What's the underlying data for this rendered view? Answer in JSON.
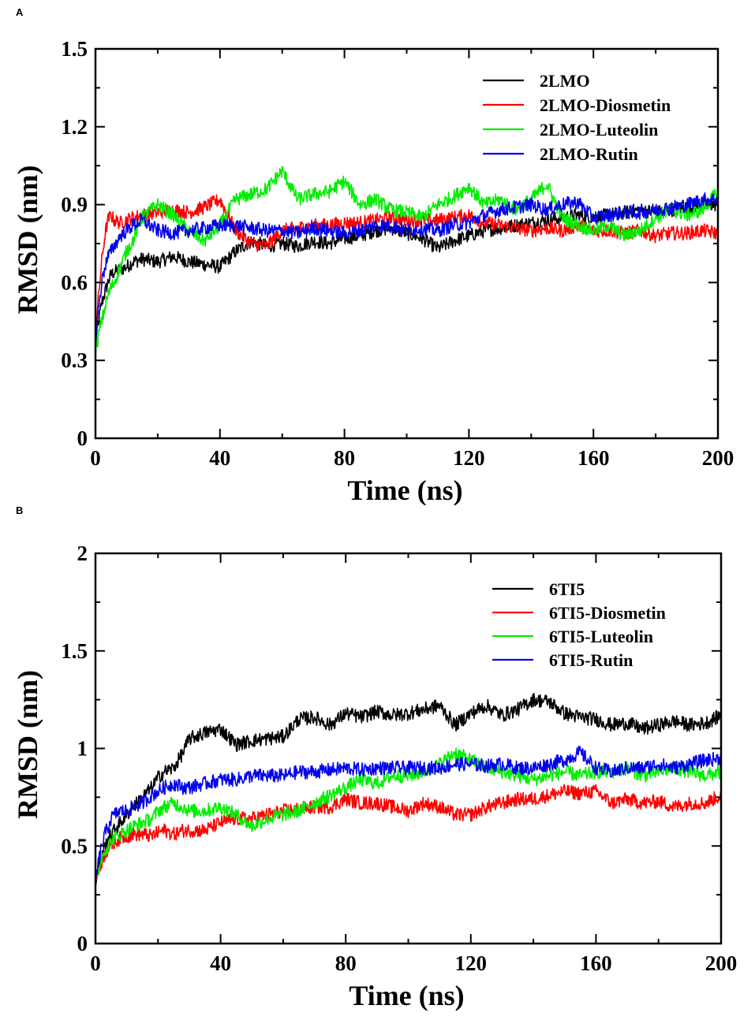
{
  "chart_data": [
    {
      "panel": "A",
      "type": "line",
      "xlabel": "Time (ns)",
      "ylabel": "RMSD (nm)",
      "xlim": [
        0,
        200
      ],
      "ylim": [
        0,
        1.5
      ],
      "xticks": [
        0,
        40,
        80,
        120,
        160,
        200
      ],
      "yticks": [
        0,
        0.3,
        0.6,
        0.9,
        1.2,
        1.5
      ],
      "xtick_labels": [
        "0",
        "40",
        "80",
        "120",
        "160",
        "200"
      ],
      "ytick_labels": [
        "0",
        "0.3",
        "0.6",
        "0.9",
        "1.2",
        "1.5"
      ],
      "legend_position": "top-right",
      "series": [
        {
          "name": "2LMO",
          "color": "#000000",
          "x": [
            0,
            1,
            2,
            3,
            4,
            5,
            6,
            8,
            10,
            12,
            15,
            20,
            25,
            30,
            35,
            40,
            45,
            50,
            55,
            60,
            65,
            70,
            75,
            80,
            85,
            90,
            95,
            100,
            105,
            110,
            115,
            120,
            125,
            130,
            135,
            140,
            145,
            150,
            155,
            160,
            165,
            170,
            175,
            180,
            185,
            190,
            195,
            200
          ],
          "y": [
            0.36,
            0.45,
            0.52,
            0.56,
            0.6,
            0.63,
            0.64,
            0.65,
            0.66,
            0.68,
            0.69,
            0.68,
            0.7,
            0.68,
            0.67,
            0.66,
            0.72,
            0.76,
            0.74,
            0.75,
            0.74,
            0.76,
            0.75,
            0.77,
            0.78,
            0.8,
            0.81,
            0.79,
            0.77,
            0.73,
            0.76,
            0.78,
            0.8,
            0.81,
            0.82,
            0.83,
            0.84,
            0.85,
            0.86,
            0.85,
            0.86,
            0.87,
            0.88,
            0.87,
            0.88,
            0.89,
            0.9,
            0.9
          ]
        },
        {
          "name": "2LMO-Diosmetin",
          "color": "#ff0000",
          "x": [
            0,
            1,
            2,
            3,
            4,
            5,
            6,
            8,
            10,
            12,
            15,
            20,
            25,
            30,
            35,
            40,
            45,
            50,
            55,
            60,
            65,
            70,
            75,
            80,
            85,
            90,
            95,
            100,
            105,
            110,
            115,
            120,
            125,
            130,
            135,
            140,
            145,
            150,
            155,
            160,
            165,
            170,
            175,
            180,
            185,
            190,
            195,
            200
          ],
          "y": [
            0.4,
            0.55,
            0.68,
            0.78,
            0.84,
            0.86,
            0.84,
            0.83,
            0.84,
            0.85,
            0.86,
            0.87,
            0.88,
            0.87,
            0.89,
            0.92,
            0.8,
            0.75,
            0.74,
            0.8,
            0.81,
            0.82,
            0.82,
            0.83,
            0.83,
            0.84,
            0.85,
            0.84,
            0.84,
            0.84,
            0.85,
            0.86,
            0.83,
            0.82,
            0.81,
            0.8,
            0.81,
            0.8,
            0.82,
            0.8,
            0.8,
            0.79,
            0.8,
            0.78,
            0.79,
            0.79,
            0.8,
            0.79
          ]
        },
        {
          "name": "2LMO-Luteolin",
          "color": "#00ee00",
          "x": [
            0,
            1,
            2,
            3,
            4,
            5,
            6,
            8,
            10,
            12,
            15,
            20,
            25,
            30,
            35,
            40,
            45,
            50,
            55,
            60,
            65,
            70,
            75,
            80,
            85,
            90,
            95,
            100,
            105,
            110,
            115,
            120,
            125,
            130,
            135,
            140,
            145,
            150,
            155,
            160,
            165,
            170,
            175,
            180,
            185,
            190,
            195,
            200
          ],
          "y": [
            0.32,
            0.4,
            0.45,
            0.5,
            0.55,
            0.58,
            0.6,
            0.66,
            0.72,
            0.76,
            0.85,
            0.9,
            0.86,
            0.8,
            0.76,
            0.82,
            0.92,
            0.94,
            0.96,
            1.03,
            0.92,
            0.94,
            0.95,
            0.99,
            0.9,
            0.92,
            0.88,
            0.87,
            0.85,
            0.9,
            0.93,
            0.97,
            0.9,
            0.92,
            0.88,
            0.92,
            0.98,
            0.85,
            0.82,
            0.8,
            0.82,
            0.78,
            0.8,
            0.85,
            0.88,
            0.86,
            0.88,
            0.95
          ]
        },
        {
          "name": "2LMO-Rutin",
          "color": "#0000ee",
          "x": [
            0,
            1,
            2,
            3,
            4,
            5,
            6,
            8,
            10,
            12,
            15,
            20,
            25,
            30,
            35,
            40,
            45,
            50,
            55,
            60,
            65,
            70,
            75,
            80,
            85,
            90,
            95,
            100,
            105,
            110,
            115,
            120,
            125,
            130,
            135,
            140,
            145,
            150,
            155,
            160,
            165,
            170,
            175,
            180,
            185,
            190,
            195,
            200
          ],
          "y": [
            0.38,
            0.5,
            0.6,
            0.66,
            0.7,
            0.72,
            0.74,
            0.78,
            0.8,
            0.82,
            0.84,
            0.8,
            0.79,
            0.8,
            0.81,
            0.82,
            0.82,
            0.81,
            0.8,
            0.8,
            0.79,
            0.81,
            0.8,
            0.79,
            0.8,
            0.82,
            0.82,
            0.8,
            0.81,
            0.8,
            0.82,
            0.83,
            0.86,
            0.88,
            0.89,
            0.9,
            0.88,
            0.9,
            0.91,
            0.85,
            0.86,
            0.87,
            0.87,
            0.88,
            0.89,
            0.9,
            0.92,
            0.92
          ]
        }
      ]
    },
    {
      "panel": "B",
      "type": "line",
      "xlabel": "Time (ns)",
      "ylabel": "RMSD (nm)",
      "xlim": [
        0,
        200
      ],
      "ylim": [
        0,
        2
      ],
      "xticks": [
        0,
        40,
        80,
        120,
        160,
        200
      ],
      "yticks": [
        0,
        0.5,
        1,
        1.5,
        2
      ],
      "xtick_labels": [
        "0",
        "40",
        "80",
        "120",
        "160",
        "200"
      ],
      "ytick_labels": [
        "0",
        "0.5",
        "1",
        "1.5",
        "2"
      ],
      "legend_position": "top-right",
      "series": [
        {
          "name": "6TI5",
          "color": "#000000",
          "x": [
            0,
            1,
            2,
            3,
            4,
            5,
            6,
            8,
            10,
            12,
            15,
            18,
            20,
            22,
            25,
            28,
            30,
            35,
            40,
            45,
            50,
            55,
            60,
            65,
            70,
            75,
            80,
            85,
            90,
            95,
            100,
            105,
            110,
            115,
            120,
            125,
            130,
            135,
            140,
            145,
            150,
            155,
            160,
            165,
            170,
            175,
            180,
            185,
            190,
            195,
            200
          ],
          "y": [
            0.3,
            0.38,
            0.44,
            0.5,
            0.54,
            0.56,
            0.58,
            0.62,
            0.66,
            0.7,
            0.75,
            0.8,
            0.85,
            0.88,
            0.9,
            0.98,
            1.05,
            1.08,
            1.1,
            1.02,
            1.04,
            1.05,
            1.06,
            1.15,
            1.16,
            1.12,
            1.18,
            1.16,
            1.19,
            1.17,
            1.18,
            1.2,
            1.22,
            1.12,
            1.18,
            1.22,
            1.17,
            1.2,
            1.25,
            1.24,
            1.18,
            1.16,
            1.15,
            1.12,
            1.13,
            1.1,
            1.12,
            1.14,
            1.12,
            1.13,
            1.17
          ]
        },
        {
          "name": "6TI5-Diosmetin",
          "color": "#ff0000",
          "x": [
            0,
            1,
            2,
            3,
            4,
            5,
            6,
            8,
            10,
            12,
            15,
            18,
            20,
            22,
            25,
            28,
            30,
            35,
            40,
            45,
            50,
            55,
            60,
            65,
            70,
            75,
            80,
            85,
            90,
            95,
            100,
            105,
            110,
            115,
            120,
            125,
            130,
            135,
            140,
            145,
            150,
            155,
            160,
            165,
            170,
            175,
            180,
            185,
            190,
            195,
            200
          ],
          "y": [
            0.32,
            0.38,
            0.42,
            0.46,
            0.48,
            0.5,
            0.52,
            0.54,
            0.55,
            0.56,
            0.56,
            0.55,
            0.57,
            0.58,
            0.56,
            0.58,
            0.58,
            0.58,
            0.62,
            0.64,
            0.64,
            0.66,
            0.68,
            0.69,
            0.7,
            0.7,
            0.74,
            0.72,
            0.72,
            0.7,
            0.68,
            0.72,
            0.7,
            0.66,
            0.66,
            0.7,
            0.72,
            0.74,
            0.74,
            0.76,
            0.78,
            0.77,
            0.78,
            0.72,
            0.74,
            0.72,
            0.73,
            0.7,
            0.72,
            0.72,
            0.76
          ]
        },
        {
          "name": "6TI5-Luteolin",
          "color": "#00ee00",
          "x": [
            0,
            1,
            2,
            3,
            4,
            5,
            6,
            8,
            10,
            12,
            15,
            18,
            20,
            22,
            25,
            28,
            30,
            35,
            40,
            45,
            50,
            55,
            60,
            65,
            70,
            75,
            80,
            85,
            90,
            95,
            100,
            105,
            110,
            115,
            120,
            125,
            130,
            135,
            140,
            145,
            150,
            155,
            160,
            165,
            170,
            175,
            180,
            185,
            190,
            195,
            200
          ],
          "y": [
            0.32,
            0.38,
            0.44,
            0.48,
            0.5,
            0.52,
            0.54,
            0.56,
            0.58,
            0.6,
            0.62,
            0.64,
            0.68,
            0.7,
            0.72,
            0.7,
            0.68,
            0.68,
            0.7,
            0.66,
            0.6,
            0.64,
            0.66,
            0.68,
            0.72,
            0.76,
            0.8,
            0.84,
            0.82,
            0.86,
            0.86,
            0.88,
            0.92,
            0.98,
            0.94,
            0.9,
            0.88,
            0.86,
            0.84,
            0.86,
            0.88,
            0.86,
            0.88,
            0.88,
            0.9,
            0.86,
            0.88,
            0.9,
            0.88,
            0.86,
            0.88
          ]
        },
        {
          "name": "6TI5-Rutin",
          "color": "#0000ee",
          "x": [
            0,
            1,
            2,
            3,
            4,
            5,
            6,
            8,
            10,
            12,
            15,
            18,
            20,
            22,
            25,
            28,
            30,
            35,
            40,
            45,
            50,
            55,
            60,
            65,
            70,
            75,
            80,
            85,
            90,
            95,
            100,
            105,
            110,
            115,
            120,
            125,
            130,
            135,
            140,
            145,
            150,
            155,
            160,
            165,
            170,
            175,
            180,
            185,
            190,
            195,
            200
          ],
          "y": [
            0.32,
            0.42,
            0.5,
            0.56,
            0.6,
            0.64,
            0.66,
            0.68,
            0.68,
            0.7,
            0.72,
            0.76,
            0.78,
            0.8,
            0.82,
            0.8,
            0.8,
            0.82,
            0.84,
            0.84,
            0.86,
            0.86,
            0.86,
            0.88,
            0.88,
            0.89,
            0.9,
            0.89,
            0.9,
            0.9,
            0.9,
            0.9,
            0.9,
            0.92,
            0.92,
            0.91,
            0.92,
            0.9,
            0.9,
            0.92,
            0.94,
            0.98,
            0.9,
            0.88,
            0.9,
            0.9,
            0.92,
            0.9,
            0.92,
            0.94,
            0.95
          ]
        }
      ]
    }
  ]
}
